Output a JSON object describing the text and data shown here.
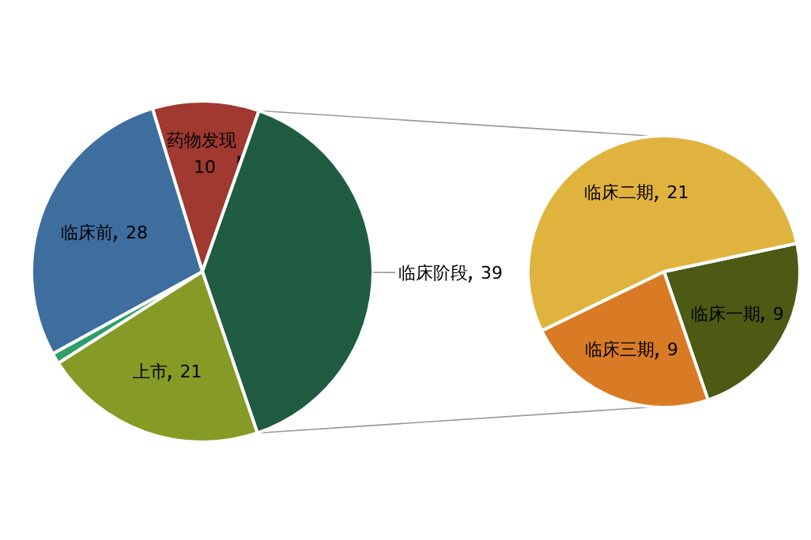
{
  "chart_data": [
    {
      "type": "pie",
      "categories": [
        "药物发现",
        "临床阶段",
        "上市",
        null,
        "临床前"
      ],
      "values": [
        10,
        39,
        21,
        1,
        28
      ],
      "colors": [
        "#a0392f",
        "#1f5c42",
        "#869a26",
        "#2e9e6a",
        "#3e6e9e"
      ],
      "value_labels": [
        "10",
        "39",
        "21",
        null,
        "28"
      ]
    },
    {
      "type": "pie",
      "categories": [
        "临床一期",
        "临床三期",
        "临床二期"
      ],
      "values": [
        9,
        9,
        21
      ],
      "colors": [
        "#4c5a14",
        "#d97a25",
        "#e0b33f"
      ],
      "data_labels": true
    }
  ]
}
